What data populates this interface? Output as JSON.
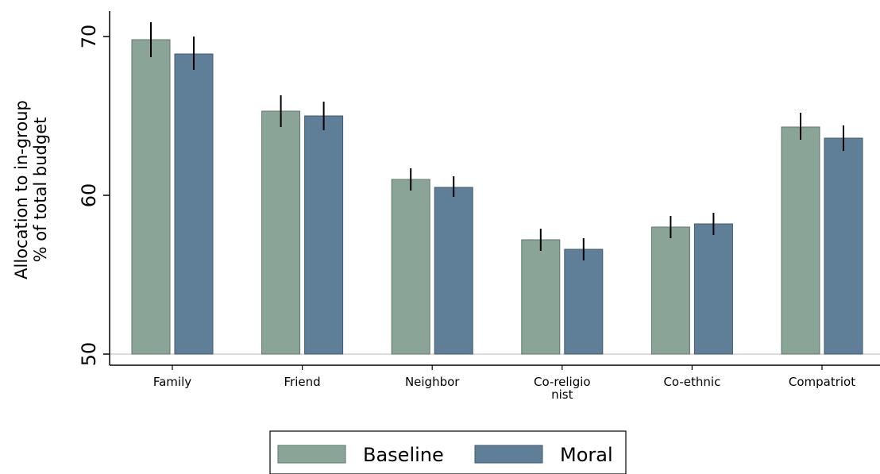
{
  "chart_data": {
    "type": "bar",
    "title": "",
    "ylabel_lines": [
      "Allocation to in-group",
      "% of total budget"
    ],
    "xlabel": "",
    "ylim": [
      50,
      70.2
    ],
    "yticks": [
      50,
      60,
      70
    ],
    "categories": [
      [
        "Family"
      ],
      [
        "Friend"
      ],
      [
        "Neighbor"
      ],
      [
        "Co-religio",
        "nist"
      ],
      [
        "Co-ethnic"
      ],
      [
        "Compatriot"
      ]
    ],
    "series": [
      {
        "name": "Baseline",
        "color": "#8aa598",
        "stroke": "#5d776b",
        "values": [
          69.8,
          65.3,
          61.0,
          57.2,
          58.0,
          64.3
        ],
        "ci_low": [
          68.7,
          64.3,
          60.3,
          56.5,
          57.3,
          63.5
        ],
        "ci_high": [
          70.9,
          66.3,
          61.7,
          57.9,
          58.7,
          65.2
        ]
      },
      {
        "name": "Moral",
        "color": "#5f7f98",
        "stroke": "#3e5a70",
        "values": [
          68.9,
          65.0,
          60.5,
          56.6,
          58.2,
          63.6
        ],
        "ci_low": [
          67.9,
          64.1,
          59.9,
          55.9,
          57.5,
          62.8
        ],
        "ci_high": [
          70.0,
          65.9,
          61.2,
          57.3,
          58.9,
          64.4
        ]
      }
    ],
    "legend_position": "bottom"
  }
}
